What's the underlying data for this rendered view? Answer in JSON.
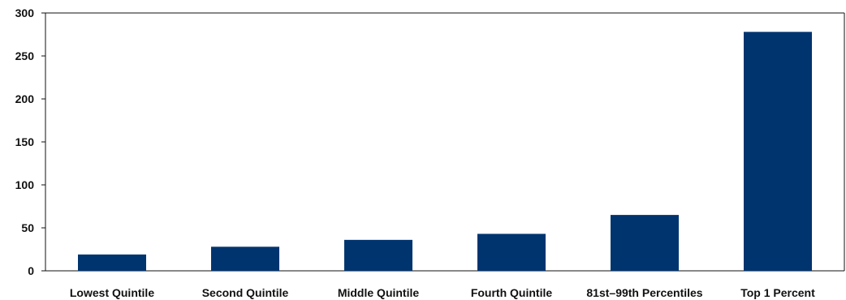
{
  "chart_data": {
    "type": "bar",
    "title": "",
    "xlabel": "",
    "ylabel": "",
    "categories": [
      "Lowest Quintile",
      "Second Quintile",
      "Middle Quintile",
      "Fourth Quintile",
      "81st–99th Percentiles",
      "Top 1 Percent"
    ],
    "values": [
      19,
      28,
      36,
      43,
      65,
      278
    ],
    "ylim": [
      0,
      300
    ],
    "yticks": [
      0,
      50,
      100,
      150,
      200,
      250,
      300
    ],
    "grid": false,
    "legend": "none",
    "bar_color": "#00346F"
  }
}
